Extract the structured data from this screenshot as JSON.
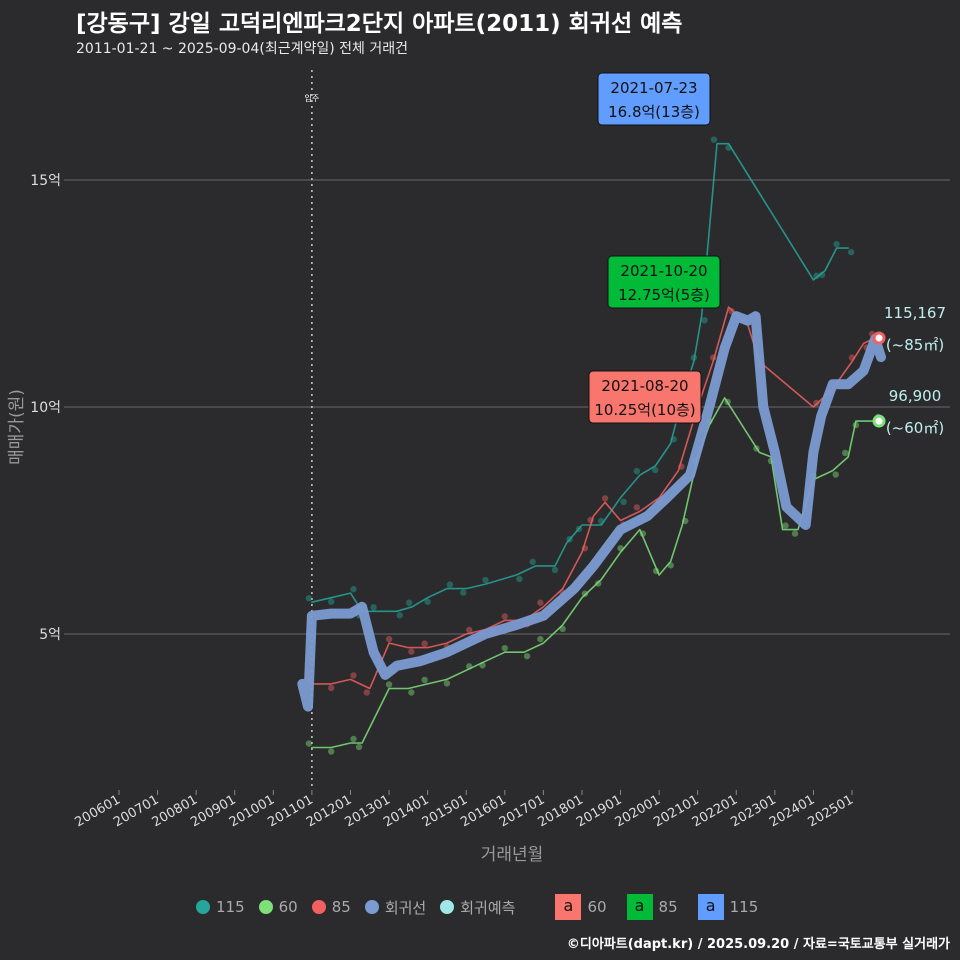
{
  "title": "[강동구] 강일 고덕리엔파크2단지 아파트(2011) 회귀선 예측",
  "subtitle": "2011-01-21 ~ 2025-09-04(최근계약일) 전체 거래건",
  "footer": "©디아파트(dapt.kr) / 2025.09.20 / 자료=국토교통부 실거래가",
  "legend": {
    "items": [
      {
        "label": "115",
        "color": "#26a69a"
      },
      {
        "label": "60",
        "color": "#7ee07a"
      },
      {
        "label": "85",
        "color": "#f06060"
      },
      {
        "label": "회귀선",
        "color": "#7b9bd1"
      },
      {
        "label": "회귀예측",
        "color": "#a0e8e8"
      }
    ],
    "boxes": [
      {
        "letter": "a",
        "label": "60",
        "color": "#f8766d"
      },
      {
        "letter": "a",
        "label": "85",
        "color": "#00ba38"
      },
      {
        "letter": "a",
        "label": "115",
        "color": "#619cff"
      }
    ]
  },
  "chart_data": {
    "type": "line",
    "xlabel": "거래년월",
    "ylabel": "매매가(원)",
    "xlim": [
      2005.6,
      2026.3
    ],
    "ylim": [
      1.6,
      17.5
    ],
    "x_ticks": [
      "200601",
      "200701",
      "200801",
      "200901",
      "201001",
      "201101",
      "201201",
      "201301",
      "201401",
      "201501",
      "201601",
      "201701",
      "201801",
      "201901",
      "202001",
      "202101",
      "202201",
      "202301",
      "202401",
      "202501"
    ],
    "y_ticks": [
      {
        "value": 5,
        "label": "5억"
      },
      {
        "value": 10,
        "label": "10억"
      },
      {
        "value": 15,
        "label": "15억"
      }
    ],
    "vline": {
      "x": 2011.0,
      "label": "입주"
    },
    "series": [
      {
        "name": "115",
        "color": "#26a69a",
        "points": [
          [
            2011.0,
            5.7
          ],
          [
            2011.5,
            5.8
          ],
          [
            2012.0,
            5.9
          ],
          [
            2012.3,
            5.5
          ],
          [
            2012.6,
            5.5
          ],
          [
            2013.2,
            5.5
          ],
          [
            2013.6,
            5.6
          ],
          [
            2014.0,
            5.8
          ],
          [
            2014.5,
            6.0
          ],
          [
            2015.0,
            6.0
          ],
          [
            2015.5,
            6.1
          ],
          [
            2016.3,
            6.3
          ],
          [
            2016.8,
            6.5
          ],
          [
            2017.3,
            6.5
          ],
          [
            2017.6,
            7.0
          ],
          [
            2018.0,
            7.4
          ],
          [
            2018.5,
            7.4
          ],
          [
            2019.0,
            8.0
          ],
          [
            2019.5,
            8.5
          ],
          [
            2019.9,
            8.7
          ],
          [
            2020.3,
            9.2
          ],
          [
            2020.6,
            10.2
          ],
          [
            2020.9,
            11.0
          ],
          [
            2021.1,
            12.0
          ],
          [
            2021.5,
            15.8
          ],
          [
            2021.8,
            15.8
          ],
          [
            2024.0,
            12.8
          ],
          [
            2024.3,
            13.0
          ],
          [
            2024.6,
            13.5
          ],
          [
            2024.9,
            13.5
          ]
        ]
      },
      {
        "name": "60",
        "color": "#7ee07a",
        "points": [
          [
            2011.0,
            2.5
          ],
          [
            2011.5,
            2.5
          ],
          [
            2012.0,
            2.6
          ],
          [
            2012.3,
            2.6
          ],
          [
            2013.0,
            3.8
          ],
          [
            2013.5,
            3.8
          ],
          [
            2014.0,
            3.9
          ],
          [
            2014.5,
            4.0
          ],
          [
            2015.0,
            4.2
          ],
          [
            2015.5,
            4.4
          ],
          [
            2016.0,
            4.6
          ],
          [
            2016.5,
            4.6
          ],
          [
            2017.0,
            4.8
          ],
          [
            2017.5,
            5.2
          ],
          [
            2018.0,
            5.8
          ],
          [
            2018.5,
            6.2
          ],
          [
            2019.0,
            6.8
          ],
          [
            2019.5,
            7.3
          ],
          [
            2020.0,
            6.3
          ],
          [
            2020.3,
            6.6
          ],
          [
            2020.6,
            7.4
          ],
          [
            2021.0,
            8.9
          ],
          [
            2021.3,
            9.6
          ],
          [
            2021.7,
            10.2
          ],
          [
            2022.6,
            9.0
          ],
          [
            2022.9,
            8.9
          ],
          [
            2023.2,
            7.3
          ],
          [
            2023.6,
            7.3
          ],
          [
            2024.0,
            8.4
          ],
          [
            2024.5,
            8.6
          ],
          [
            2024.9,
            8.9
          ],
          [
            2025.1,
            9.69
          ],
          [
            2025.6,
            9.69
          ]
        ]
      },
      {
        "name": "85",
        "color": "#f06060",
        "points": [
          [
            2011.0,
            3.9
          ],
          [
            2011.5,
            3.9
          ],
          [
            2012.0,
            4.0
          ],
          [
            2012.5,
            3.8
          ],
          [
            2013.0,
            4.8
          ],
          [
            2013.5,
            4.7
          ],
          [
            2014.0,
            4.7
          ],
          [
            2014.5,
            4.8
          ],
          [
            2015.0,
            5.0
          ],
          [
            2015.5,
            5.1
          ],
          [
            2016.0,
            5.3
          ],
          [
            2016.5,
            5.3
          ],
          [
            2017.0,
            5.6
          ],
          [
            2017.5,
            6.0
          ],
          [
            2018.0,
            6.8
          ],
          [
            2018.3,
            7.6
          ],
          [
            2018.6,
            7.9
          ],
          [
            2019.0,
            7.5
          ],
          [
            2019.5,
            7.7
          ],
          [
            2020.0,
            8.0
          ],
          [
            2020.5,
            8.6
          ],
          [
            2021.0,
            10.0
          ],
          [
            2021.4,
            11.0
          ],
          [
            2021.8,
            12.2
          ],
          [
            2022.3,
            11.8
          ],
          [
            2022.6,
            11.0
          ],
          [
            2024.0,
            10.0
          ],
          [
            2024.5,
            10.4
          ],
          [
            2025.0,
            11.0
          ],
          [
            2025.3,
            11.4
          ],
          [
            2025.6,
            11.52
          ]
        ]
      },
      {
        "name": "회귀선",
        "color": "#7b9bd1",
        "points": [
          [
            2010.75,
            3.9
          ],
          [
            2010.9,
            3.4
          ],
          [
            2011.0,
            5.4
          ],
          [
            2011.5,
            5.45
          ],
          [
            2012.0,
            5.45
          ],
          [
            2012.3,
            5.6
          ],
          [
            2012.6,
            4.6
          ],
          [
            2012.9,
            4.1
          ],
          [
            2013.2,
            4.3
          ],
          [
            2013.8,
            4.4
          ],
          [
            2014.5,
            4.6
          ],
          [
            2015.5,
            5.0
          ],
          [
            2016.3,
            5.2
          ],
          [
            2017.0,
            5.4
          ],
          [
            2017.8,
            6.0
          ],
          [
            2018.3,
            6.5
          ],
          [
            2019.0,
            7.3
          ],
          [
            2019.7,
            7.6
          ],
          [
            2020.2,
            8.0
          ],
          [
            2020.8,
            8.5
          ],
          [
            2021.3,
            10.0
          ],
          [
            2021.7,
            11.3
          ],
          [
            2022.0,
            12.0
          ],
          [
            2022.3,
            11.9
          ],
          [
            2022.5,
            12.0
          ],
          [
            2022.7,
            10.0
          ],
          [
            2023.0,
            9.0
          ],
          [
            2023.3,
            7.8
          ],
          [
            2023.8,
            7.4
          ],
          [
            2024.0,
            9.0
          ],
          [
            2024.2,
            9.8
          ],
          [
            2024.5,
            10.5
          ],
          [
            2024.9,
            10.5
          ],
          [
            2025.3,
            10.8
          ],
          [
            2025.6,
            11.5
          ],
          [
            2025.75,
            11.1
          ]
        ]
      }
    ],
    "predictions": [
      {
        "name": "115",
        "value": "115,167",
        "area": "(~85㎡)",
        "x": 2025.7,
        "y": 11.52,
        "color": "#f06060"
      },
      {
        "name": "96,900",
        "value": "96,900",
        "area": "(~60㎡)",
        "x": 2025.7,
        "y": 9.69,
        "color": "#7ee07a"
      }
    ],
    "annotations": [
      {
        "date": "2021-07-23",
        "price": "16.8억(13층)",
        "x": 2021.4,
        "y": 16.8,
        "color": "#619cff"
      },
      {
        "date": "2021-10-20",
        "price": "12.75억(5층)",
        "x": 2021.6,
        "y": 12.75,
        "color": "#00ba38"
      },
      {
        "date": "2021-08-20",
        "price": "10.25억(10층)",
        "x": 2021.0,
        "y": 10.25,
        "color": "#f8766d"
      }
    ]
  }
}
